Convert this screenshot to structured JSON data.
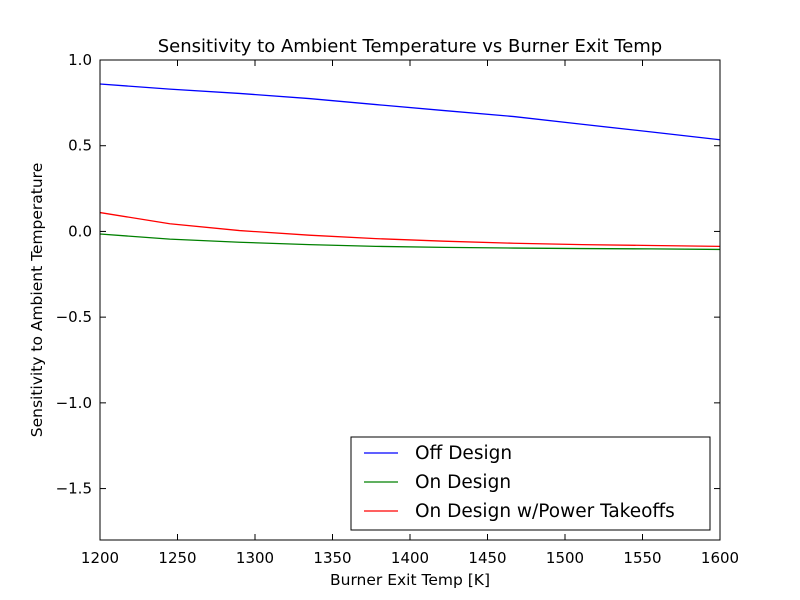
{
  "chart_data": {
    "type": "line",
    "title": "Sensitivity to Ambient Temperature vs Burner Exit Temp",
    "xlabel": "Burner Exit Temp [K]",
    "ylabel": "Sensitivity to Ambient Temperature",
    "xlim": [
      1200,
      1600
    ],
    "ylim": [
      -1.8,
      1.0
    ],
    "xticks": [
      1200,
      1250,
      1300,
      1350,
      1400,
      1450,
      1500,
      1550,
      1600
    ],
    "xtick_labels": [
      "1200",
      "1250",
      "1300",
      "1350",
      "1400",
      "1450",
      "1500",
      "1550",
      "1600"
    ],
    "yticks": [
      1.0,
      0.5,
      0.0,
      -0.5,
      -1.0,
      -1.5
    ],
    "ytick_labels": [
      "1.0",
      "0.5",
      "0.0",
      "−0.5",
      "−1.0",
      "−1.5"
    ],
    "grid": false,
    "legend_position": "lower-right",
    "x": [
      1200,
      1245,
      1290,
      1335,
      1378,
      1422,
      1467,
      1511,
      1556,
      1600
    ],
    "series": [
      {
        "name": "Off Design",
        "color": "#0000ff",
        "values": [
          0.86,
          0.83,
          0.805,
          0.775,
          0.74,
          0.705,
          0.67,
          0.625,
          0.58,
          0.535
        ]
      },
      {
        "name": "On Design",
        "color": "#008000",
        "values": [
          -0.015,
          -0.045,
          -0.063,
          -0.077,
          -0.087,
          -0.093,
          -0.097,
          -0.1,
          -0.102,
          -0.105
        ]
      },
      {
        "name": "On Design w/Power Takeoffs",
        "color": "#ff0000",
        "values": [
          0.11,
          0.045,
          0.005,
          -0.022,
          -0.042,
          -0.057,
          -0.069,
          -0.077,
          -0.082,
          -0.087
        ]
      }
    ]
  }
}
